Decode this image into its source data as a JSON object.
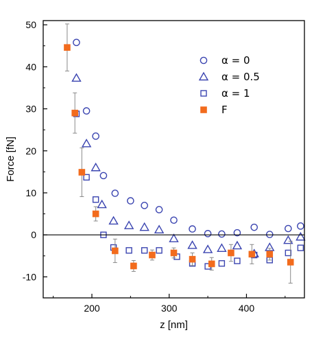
{
  "chart_data": {
    "type": "scatter",
    "title": "",
    "xlabel": "z [nm]",
    "ylabel": "Force [fN]",
    "xlim": [
      137,
      475
    ],
    "ylim": [
      -15,
      51
    ],
    "xticks": [
      200,
      300,
      400
    ],
    "yticks": [
      -10,
      0,
      10,
      20,
      30,
      40,
      50
    ],
    "zero_line": 0,
    "grid": false,
    "legend_position": "top-right",
    "series": [
      {
        "name": "α = 0",
        "marker": "circle-open",
        "color": "#3a44b0",
        "x": [
          180,
          193,
          205,
          215,
          230,
          250,
          268,
          287,
          306,
          330,
          350,
          368,
          388,
          410,
          430,
          454,
          470
        ],
        "y": [
          45.8,
          29.5,
          23.5,
          14.1,
          9.9,
          8.1,
          7.0,
          6.0,
          3.5,
          1.4,
          0.3,
          0.2,
          0.5,
          1.8,
          0.1,
          1.5,
          2.1
        ]
      },
      {
        "name": "α = 0.5",
        "marker": "triangle-open",
        "color": "#3a44b0",
        "x": [
          180,
          193,
          205,
          213,
          228,
          248,
          268,
          287,
          306,
          330,
          350,
          368,
          388,
          410,
          430,
          454,
          470
        ],
        "y": [
          37.3,
          21.7,
          16.0,
          7.2,
          3.3,
          2.2,
          1.8,
          1.2,
          -0.9,
          -2.5,
          -3.5,
          -3.2,
          -2.6,
          -4.5,
          -3.0,
          -1.3,
          -0.5
        ]
      },
      {
        "name": "α = 1",
        "marker": "square-open",
        "color": "#3a44b0",
        "x": [
          180,
          193,
          205,
          215,
          228,
          248,
          268,
          287,
          310,
          330,
          350,
          368,
          388,
          410,
          430,
          454,
          470
        ],
        "y": [
          28.8,
          13.7,
          8.4,
          0.0,
          -3.0,
          -3.7,
          -3.7,
          -3.7,
          -5.2,
          -6.8,
          -7.5,
          -6.8,
          -6.2,
          -4.8,
          -6.0,
          -4.3,
          -3.1
        ]
      },
      {
        "name": "F",
        "marker": "square-filled",
        "color": "#f26b1d",
        "x": [
          168,
          178,
          187,
          205,
          230,
          254,
          278,
          306,
          330,
          355,
          380,
          407,
          430,
          457
        ],
        "y": [
          44.6,
          29.0,
          14.9,
          5.0,
          -3.8,
          -7.4,
          -4.8,
          -4.3,
          -5.8,
          -6.9,
          -4.3,
          -4.6,
          -4.6,
          -6.5
        ],
        "error": [
          5.6,
          4.8,
          5.8,
          1.7,
          2.8,
          1.3,
          1.2,
          1.2,
          1.5,
          1.5,
          2.0,
          2.3,
          1.4,
          5.0
        ]
      }
    ]
  }
}
